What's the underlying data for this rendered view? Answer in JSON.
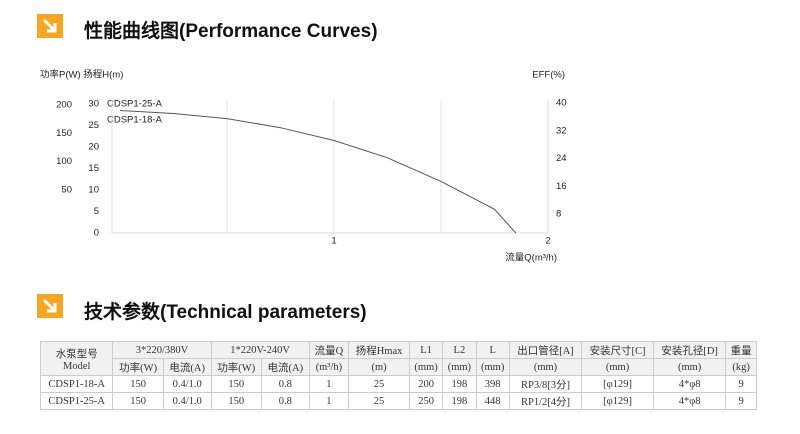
{
  "section1": {
    "title": "性能曲线图(Performance Curves)"
  },
  "chart_data": {
    "type": "line",
    "y_label": "功率P(W) 扬程H(m)",
    "y2_label": "EFF(%)",
    "x_label": "流量Q(m³/h)",
    "labels": [
      "CDSP1-25-A",
      "CDSP1-18-A"
    ],
    "x": [
      0,
      0.25,
      0.5,
      0.75,
      1,
      1.25,
      1.5,
      1.75,
      1.85
    ],
    "series": [
      {
        "color": "#555555",
        "values": [
          28.5,
          27.8,
          26.6,
          24.5,
          21.5,
          17.5,
          12,
          5.5,
          0
        ]
      }
    ],
    "xlim": [
      0,
      2
    ],
    "xticks": [
      1,
      2
    ],
    "xgrid": [
      0.5,
      1,
      1.5
    ],
    "ylim": [
      0,
      30
    ],
    "yticks": [
      0,
      5,
      10,
      15,
      20,
      25,
      30
    ],
    "plim": [
      0,
      200
    ],
    "pticks": [
      50,
      100,
      150,
      200
    ],
    "y2lim": [
      0,
      40
    ],
    "y2ticks": [
      8,
      16,
      24,
      32,
      40
    ]
  },
  "section2": {
    "title": "技术参数(Technical parameters)"
  },
  "table": {
    "model_header": [
      "水泵型号",
      "Model"
    ],
    "header_top": [
      "3*220/380V",
      "1*220V-240V",
      "流量Q",
      "扬程Hmax",
      "L1",
      "L2",
      "L",
      "出口管径[A]",
      "安装尺寸[C]",
      "安装孔径[D]",
      "重量"
    ],
    "header_sub": [
      "功率(W)",
      "电流(A)",
      "功率(W)",
      "电流(A)",
      "(m³/h)",
      "(m)",
      "(mm)",
      "(mm)",
      "(mm)",
      "(mm)",
      "(mm)",
      "(mm)",
      "(kg)"
    ],
    "rows": [
      [
        "CDSP1-18-A",
        150,
        "0.4/1.0",
        150,
        0.8,
        1,
        25,
        200,
        198,
        398,
        "RP3/8[3分]",
        "[φ129]",
        "4*φ8",
        9
      ],
      [
        "CDSP1-25-A",
        150,
        "0.4/1.0",
        150,
        0.8,
        1,
        25,
        250,
        198,
        448,
        "RP1/2[4分]",
        "[φ129]",
        "4*φ8",
        9
      ]
    ]
  }
}
